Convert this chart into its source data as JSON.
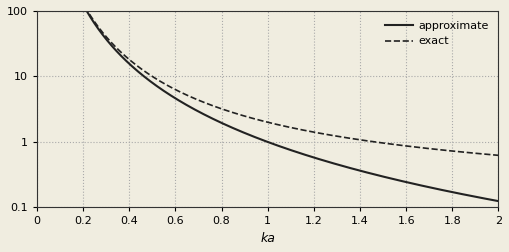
{
  "xlabel": "ka",
  "xlim": [
    0,
    2
  ],
  "ylim": [
    0.1,
    100
  ],
  "xticks": [
    0,
    0.2,
    0.4,
    0.6,
    0.8,
    1.0,
    1.2,
    1.4,
    1.6,
    1.8,
    2.0
  ],
  "yticks": [
    0.1,
    1,
    10,
    100
  ],
  "grid_color": "#aaaaaa",
  "line_color": "#222222",
  "legend_approximate": "approximate",
  "legend_exact": "exact",
  "background_color": "#f0ede0",
  "figsize": [
    5.09,
    2.52
  ],
  "dpi": 100
}
